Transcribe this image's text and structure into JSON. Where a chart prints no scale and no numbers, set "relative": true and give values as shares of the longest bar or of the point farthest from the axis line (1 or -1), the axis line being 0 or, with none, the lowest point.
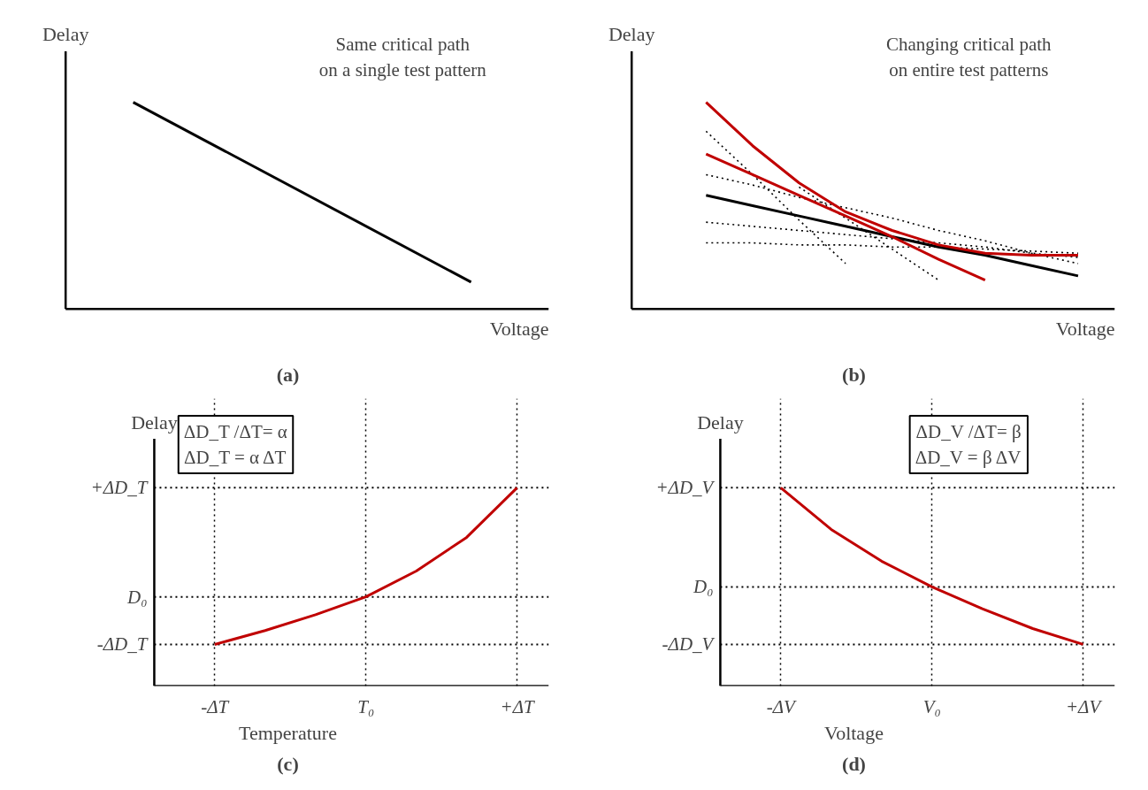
{
  "chart_data": [
    {
      "type": "line",
      "title": "(a)",
      "xlabel": "Voltage",
      "ylabel": "Delay",
      "relative": true,
      "tick_labels": false,
      "grid": false,
      "categories": [
        null,
        null
      ],
      "annotations": [
        "Same critical path\non a single test pattern"
      ],
      "series": [
        {
          "color": "#000000",
          "line_style": "solid",
          "values": [
            1,
            0.13
          ]
        }
      ]
    },
    {
      "type": "line",
      "title": "(b)",
      "xlabel": "Voltage",
      "ylabel": "Delay",
      "relative": true,
      "tick_labels": false,
      "grid": false,
      "categories": [
        null,
        null,
        null,
        null,
        null,
        null,
        null,
        null,
        null
      ],
      "annotations": [
        "Changing critical path\non entire test patterns"
      ],
      "series": [
        {
          "color": "#000000",
          "line_style": "dotted",
          "values": [
            0.86,
            0.65,
            0.43,
            0.22,
            null,
            null,
            null,
            null,
            null
          ]
        },
        {
          "color": "#000000",
          "line_style": "dotted",
          "values": [
            0.65,
            0.6,
            0.54,
            0.49,
            0.44,
            0.38,
            0.33,
            0.27,
            0.22
          ]
        },
        {
          "color": "#000000",
          "line_style": "dotted",
          "values": [
            0.42,
            0.4,
            0.38,
            0.36,
            0.34,
            0.32,
            0.3,
            0.27,
            0.25
          ]
        },
        {
          "color": "#000000",
          "line_style": "dotted",
          "values": [
            0.32,
            0.32,
            0.31,
            0.31,
            0.3,
            0.3,
            0.29,
            0.28,
            0.27
          ]
        },
        {
          "color": "#000000",
          "line_style": "dotted",
          "values": [
            null,
            null,
            0.59,
            0.44,
            0.29,
            0.14,
            null,
            null,
            null
          ]
        },
        {
          "color": "#000000",
          "line_style": "solid",
          "values": [
            0.55,
            0.5,
            0.45,
            0.4,
            0.35,
            0.3,
            0.26,
            0.21,
            0.16
          ]
        },
        {
          "color": "#c00000",
          "line_style": "solid",
          "values": [
            0.75,
            0.65,
            0.55,
            0.45,
            0.35,
            0.24,
            0.14,
            null,
            null
          ]
        },
        {
          "color": "#c00000",
          "line_style": "solid",
          "values": [
            1,
            0.79,
            0.61,
            0.47,
            0.38,
            0.31,
            0.27,
            0.26,
            0.26
          ]
        }
      ]
    },
    {
      "type": "line",
      "title": "(c)",
      "xlabel": "Temperature",
      "ylabel": "Delay",
      "relative": true,
      "tick_labels": "x",
      "grid": "x",
      "categories": [
        "-ΔT",
        null,
        null,
        "T₀",
        null,
        null,
        "+ΔT"
      ],
      "ref_lines": [
        {
          "axis": "y",
          "value": 0.21,
          "label": "-ΔD_T",
          "line_style": "dotted"
        },
        {
          "axis": "y",
          "value": 0.45,
          "label": "D₀",
          "line_style": "dotted"
        },
        {
          "axis": "y",
          "value": 1,
          "label": "+ΔD_T",
          "line_style": "dotted"
        }
      ],
      "annotations": [
        "ΔD_T /ΔT= α\nΔD_T = α ΔT"
      ],
      "series": [
        {
          "color": "#c00000",
          "line_style": "solid",
          "values": [
            0.21,
            0.28,
            0.36,
            0.45,
            0.58,
            0.75,
            1
          ]
        }
      ]
    },
    {
      "type": "line",
      "title": "(d)",
      "xlabel": "Voltage",
      "ylabel": "Delay",
      "relative": true,
      "tick_labels": "x",
      "grid": "x",
      "categories": [
        "-ΔV",
        null,
        null,
        "V₀",
        null,
        null,
        "+ΔV"
      ],
      "ref_lines": [
        {
          "axis": "y",
          "value": 0.21,
          "label": "-ΔD_V",
          "line_style": "dotted"
        },
        {
          "axis": "y",
          "value": 0.5,
          "label": "D₀",
          "line_style": "dotted"
        },
        {
          "axis": "y",
          "value": 1,
          "label": "+ΔD_V",
          "line_style": "dotted"
        }
      ],
      "annotations": [
        "ΔD_V /ΔT= β\nΔD_V = β ΔV"
      ],
      "series": [
        {
          "color": "#c00000",
          "line_style": "solid",
          "values": [
            1,
            0.79,
            0.63,
            0.5,
            0.39,
            0.29,
            0.21
          ]
        }
      ]
    }
  ]
}
